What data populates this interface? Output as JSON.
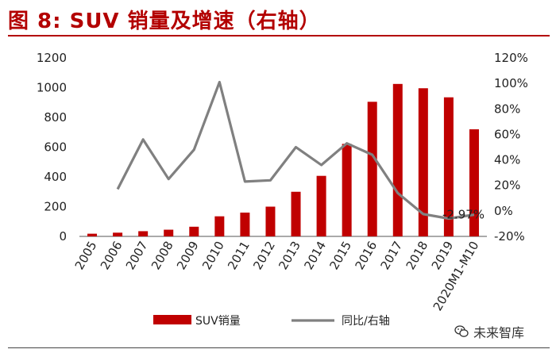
{
  "title": "图 8:    SUV 销量及增速（右轴）",
  "watermark": {
    "text": "未来智库",
    "icon": "wechat-icon"
  },
  "colors": {
    "bar": "#c00000",
    "line": "#808080",
    "title": "#b30000"
  },
  "chart_data": {
    "type": "bar",
    "title": "SUV 销量及增速（右轴）",
    "categories": [
      "2005",
      "2006",
      "2007",
      "2008",
      "2009",
      "2010",
      "2011",
      "2012",
      "2013",
      "2014",
      "2015",
      "2016",
      "2017",
      "2018",
      "2019",
      "2020M1-M10"
    ],
    "series": [
      {
        "name": "SUV销量",
        "type": "bar",
        "axis": "left",
        "values": [
          18,
          25,
          35,
          45,
          65,
          135,
          160,
          200,
          300,
          407,
          622,
          905,
          1025,
          996,
          935,
          720
        ]
      },
      {
        "name": "同比/右轴",
        "type": "line",
        "axis": "right",
        "values": [
          null,
          17,
          56,
          25,
          48,
          101,
          23,
          24,
          50,
          36,
          53,
          44,
          14,
          -2.5,
          -6,
          -2.97
        ]
      }
    ],
    "left_axis": {
      "ylim": [
        0,
        1200
      ],
      "ticks": [
        "0",
        "200",
        "400",
        "600",
        "800",
        "1000",
        "1200"
      ]
    },
    "right_axis": {
      "ylim": [
        -20,
        120
      ],
      "ticks": [
        "-20%",
        "0%",
        "20%",
        "40%",
        "60%",
        "80%",
        "100%",
        "120%"
      ]
    },
    "annotations": [
      {
        "text": "-2.97%",
        "series": 1,
        "category_index": 15
      }
    ],
    "legend": {
      "placement": "bottom"
    }
  }
}
